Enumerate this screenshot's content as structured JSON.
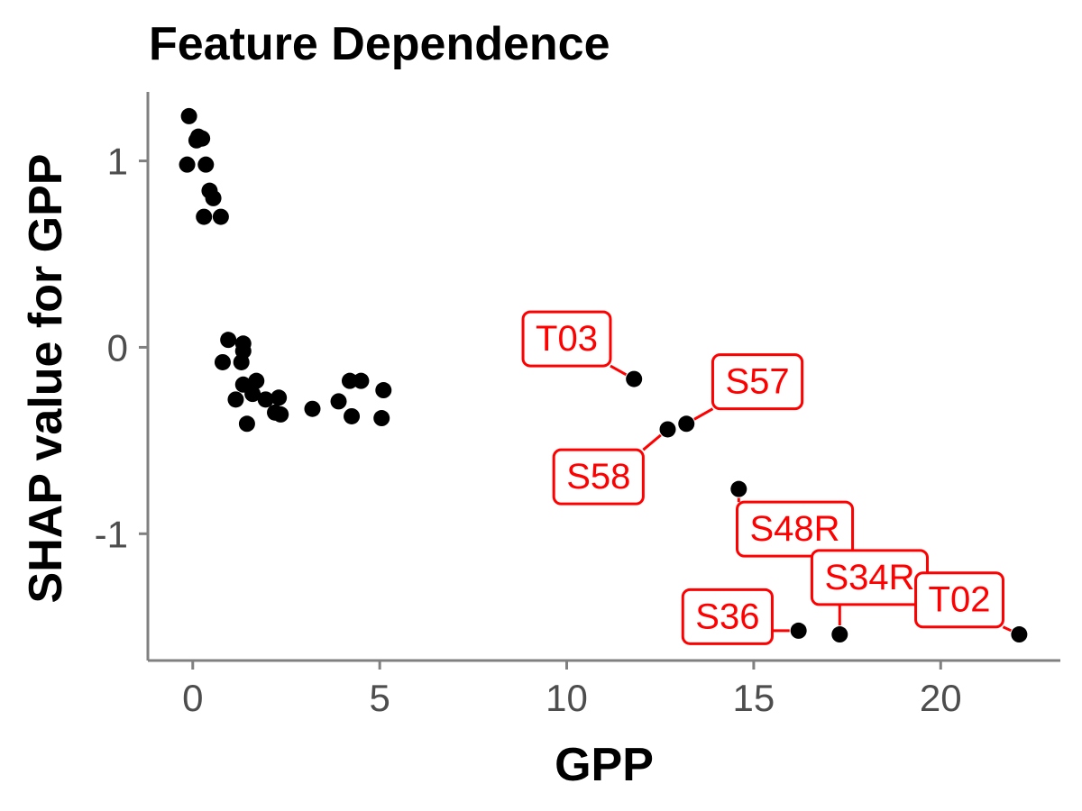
{
  "chart_data": {
    "type": "scatter",
    "title": "Feature Dependence",
    "xlabel": "GPP",
    "ylabel": "SHAP value for GPP",
    "xlim": [
      -1.2,
      23.2
    ],
    "ylim": [
      -1.68,
      1.37
    ],
    "x_ticks": [
      0,
      5,
      10,
      15,
      20
    ],
    "x_tick_labels": [
      "0",
      "5",
      "10",
      "15",
      "20"
    ],
    "y_ticks": [
      -1,
      0,
      1
    ],
    "y_tick_labels": [
      "-1",
      "0",
      "1"
    ],
    "grid": false,
    "legend": "none",
    "point_color": "#000000",
    "label_color": "#ff0000",
    "points": [
      {
        "x": -0.1,
        "y": 1.24
      },
      {
        "x": 0.15,
        "y": 1.13
      },
      {
        "x": 0.25,
        "y": 1.12
      },
      {
        "x": 0.1,
        "y": 1.11
      },
      {
        "x": -0.15,
        "y": 0.98
      },
      {
        "x": 0.35,
        "y": 0.98
      },
      {
        "x": 0.45,
        "y": 0.84
      },
      {
        "x": 0.55,
        "y": 0.8
      },
      {
        "x": 0.3,
        "y": 0.7
      },
      {
        "x": 0.75,
        "y": 0.7
      },
      {
        "x": 0.95,
        "y": 0.04
      },
      {
        "x": 1.35,
        "y": 0.02
      },
      {
        "x": 1.35,
        "y": -0.02
      },
      {
        "x": 0.8,
        "y": -0.08
      },
      {
        "x": 1.3,
        "y": -0.08
      },
      {
        "x": 1.35,
        "y": -0.2
      },
      {
        "x": 1.7,
        "y": -0.18
      },
      {
        "x": 1.6,
        "y": -0.25
      },
      {
        "x": 1.15,
        "y": -0.28
      },
      {
        "x": 1.95,
        "y": -0.28
      },
      {
        "x": 2.3,
        "y": -0.27
      },
      {
        "x": 2.2,
        "y": -0.35
      },
      {
        "x": 2.35,
        "y": -0.36
      },
      {
        "x": 1.45,
        "y": -0.41
      },
      {
        "x": 3.2,
        "y": -0.33
      },
      {
        "x": 3.9,
        "y": -0.29
      },
      {
        "x": 4.2,
        "y": -0.18
      },
      {
        "x": 4.5,
        "y": -0.18
      },
      {
        "x": 4.25,
        "y": -0.37
      },
      {
        "x": 5.1,
        "y": -0.23
      },
      {
        "x": 5.05,
        "y": -0.38
      },
      {
        "x": 11.8,
        "y": -0.17,
        "label": "T03"
      },
      {
        "x": 12.7,
        "y": -0.44,
        "label": "S58"
      },
      {
        "x": 13.2,
        "y": -0.41,
        "label": "S57"
      },
      {
        "x": 14.6,
        "y": -0.76,
        "label": "S48R"
      },
      {
        "x": 16.2,
        "y": -1.52,
        "label": "S36"
      },
      {
        "x": 17.3,
        "y": -1.54,
        "label": "S34R"
      },
      {
        "x": 22.1,
        "y": -1.54,
        "label": "T02"
      }
    ],
    "annotations": [
      {
        "text": "T03",
        "x": 10.0,
        "y": 0.05,
        "target_x": 11.8,
        "target_y": -0.17
      },
      {
        "text": "S57",
        "x": 15.1,
        "y": -0.18,
        "target_x": 13.2,
        "target_y": -0.41
      },
      {
        "text": "S58",
        "x": 10.85,
        "y": -0.69,
        "target_x": 12.7,
        "target_y": -0.44
      },
      {
        "text": "S48R",
        "x": 16.1,
        "y": -0.97,
        "target_x": 14.6,
        "target_y": -0.76
      },
      {
        "text": "S34R",
        "x": 18.1,
        "y": -1.23,
        "target_x": 17.3,
        "target_y": -1.54
      },
      {
        "text": "S36",
        "x": 14.3,
        "y": -1.44,
        "target_x": 16.2,
        "target_y": -1.52
      },
      {
        "text": "T02",
        "x": 20.5,
        "y": -1.35,
        "target_x": 22.1,
        "target_y": -1.54
      }
    ]
  }
}
